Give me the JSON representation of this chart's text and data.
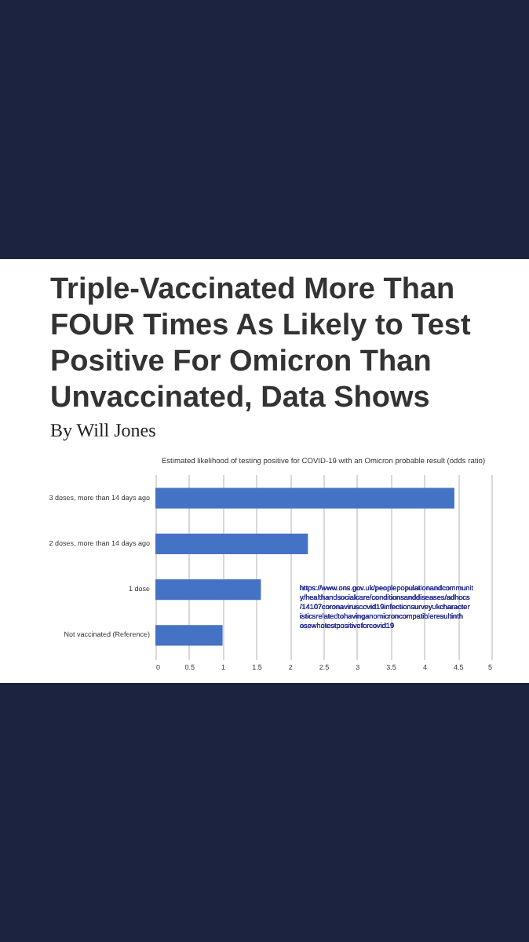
{
  "chart_data": {
    "type": "bar",
    "orientation": "horizontal",
    "title": "Triple-Vaccinated More Than FOUR Times As Likely to Test Positive For Omicron Than Unvaccinated, Data Shows",
    "subtitle": "By Will Jones",
    "annotations": [
      "Estimated likelihood of testing positive for COVID-19 with an Omicron probable result (odds ratio)",
      "https://www.ons.gov.uk/peoplepopulationandcommunity/healthandsocialcare/conditionsanddiseases/adhocs/14107coronaviruscovid19infectionsurveyukcharacteristicsrelatedtohavinganomicroncompatibleresultinthosewhotestpositiveforcovid19"
    ],
    "categories": [
      "3 doses, more than 14 days ago",
      "2 doses, more than 14 days ago",
      "1 dose",
      "Not vaccinated (Reference)"
    ],
    "values": [
      4.45,
      2.27,
      1.57,
      1.0
    ],
    "color": "#4472c4",
    "xlim": [
      0,
      5
    ],
    "xticks": [
      0,
      0.5,
      1,
      1.5,
      2,
      2.5,
      3,
      3.5,
      4,
      4.5,
      5
    ],
    "grid": "x"
  }
}
